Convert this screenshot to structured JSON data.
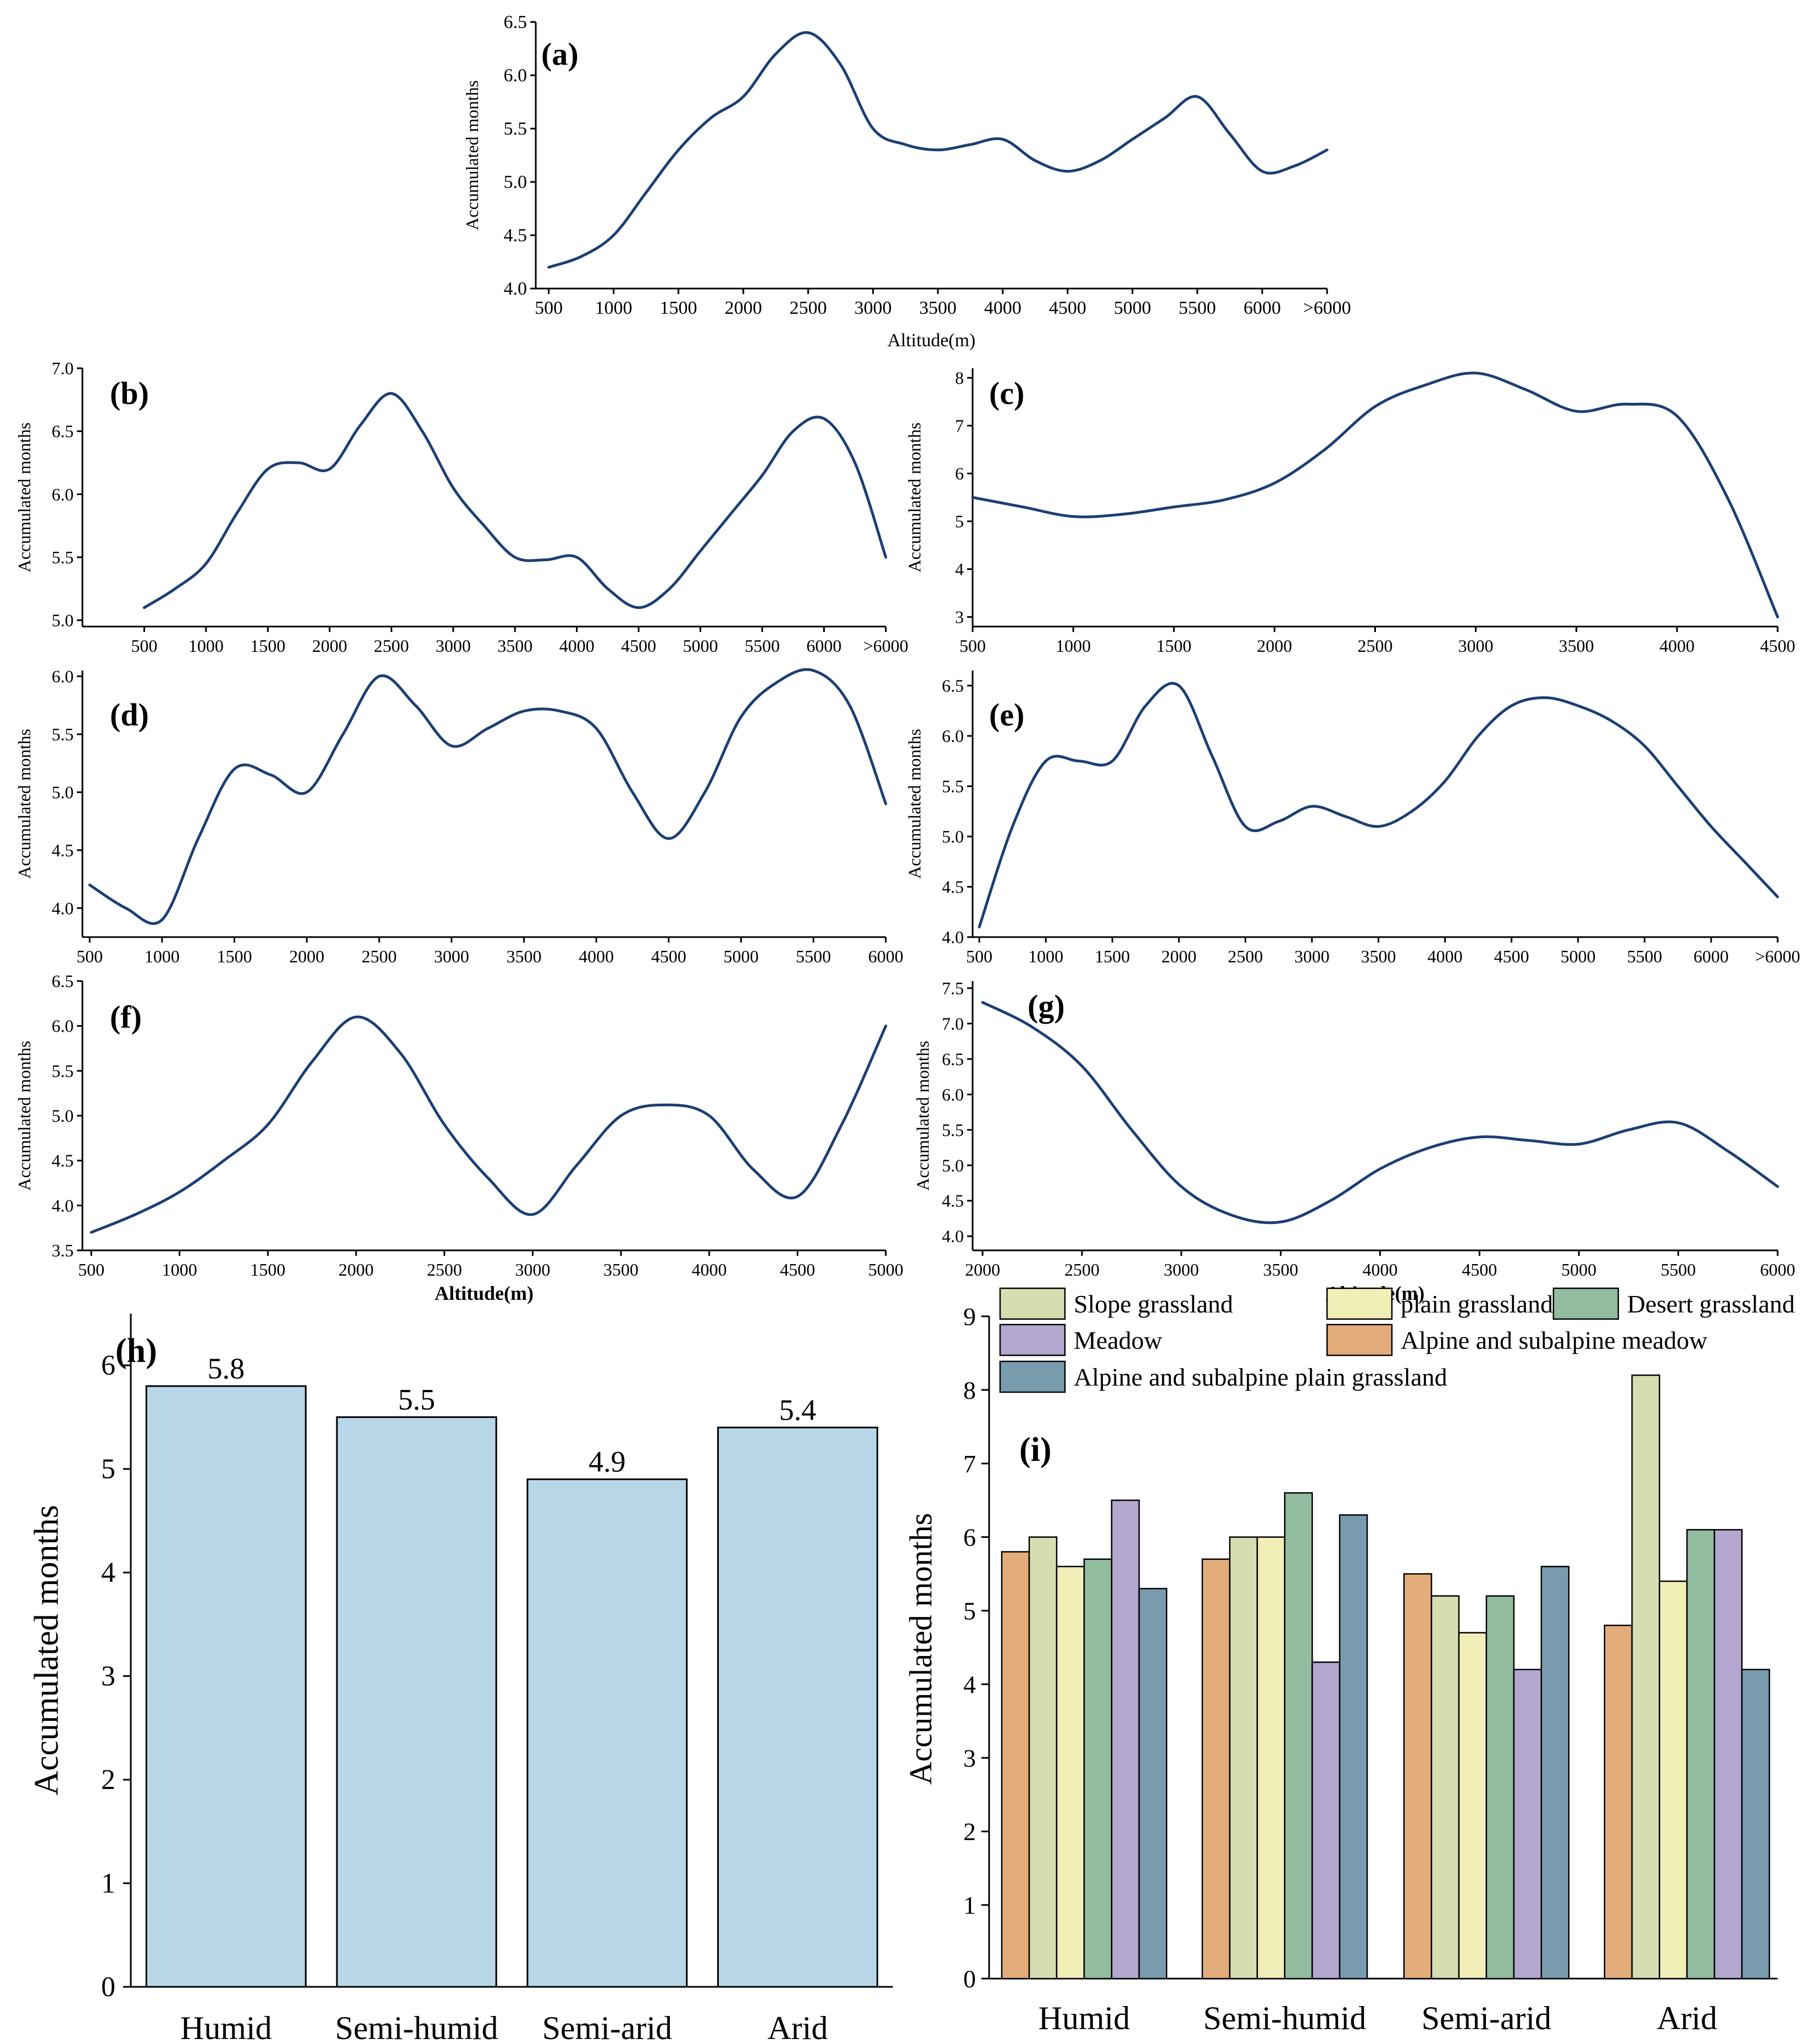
{
  "figure": {
    "panel_labels": [
      "(a)",
      "(b)",
      "(c)",
      "(d)",
      "(e)",
      "(f)",
      "(g)",
      "(h)",
      "(i)"
    ]
  },
  "colors": {
    "line": "#1b3f73",
    "bar_h": "#b7d7e8",
    "alpine_meadow": "#e3ad7b",
    "slope_grassland": "#d5deb0",
    "plain_grassland": "#f2eeb8",
    "desert_grassland": "#92bc9f",
    "meadow": "#b3a6cf",
    "alpine_plain_grassland": "#789cae"
  },
  "chart_data": [
    {
      "id": "a",
      "type": "line",
      "label": "(a)",
      "ylabel": "Accumulated months",
      "xlabel": "Altitude(m)",
      "x": [
        500,
        750,
        1000,
        1250,
        1500,
        1750,
        2000,
        2250,
        2500,
        2750,
        3000,
        3250,
        3500,
        3750,
        4000,
        4250,
        4500,
        4750,
        5000,
        5250,
        5500,
        5750,
        6000,
        6250,
        6500
      ],
      "y": [
        4.2,
        4.3,
        4.5,
        4.9,
        5.3,
        5.6,
        5.8,
        6.2,
        6.4,
        6.1,
        5.5,
        5.35,
        5.3,
        5.35,
        5.4,
        5.2,
        5.1,
        5.2,
        5.4,
        5.6,
        5.8,
        5.45,
        5.1,
        5.15,
        5.3
      ],
      "xlim": [
        400,
        6500
      ],
      "ylim": [
        4.0,
        6.5
      ],
      "xticks": [
        500,
        1000,
        1500,
        2000,
        2500,
        3000,
        3500,
        4000,
        4500,
        5000,
        5500,
        6000,
        6500
      ],
      "xticklabels": [
        "500",
        "1000",
        "1500",
        "2000",
        "2500",
        "3000",
        "3500",
        "4000",
        "4500",
        "5000",
        "5500",
        "6000",
        ">6000"
      ],
      "yticks": [
        "4.0",
        "4.5",
        "5.0",
        "5.5",
        "6.0",
        "6.5"
      ]
    },
    {
      "id": "b",
      "type": "line",
      "label": "(b)",
      "ylabel": "Accumulated months",
      "xlabel": "",
      "x": [
        500,
        750,
        1000,
        1250,
        1500,
        1750,
        2000,
        2250,
        2500,
        2750,
        3000,
        3250,
        3500,
        3750,
        4000,
        4250,
        4500,
        4750,
        5000,
        5250,
        5500,
        5750,
        6000,
        6250,
        6500
      ],
      "y": [
        5.1,
        5.25,
        5.45,
        5.85,
        6.2,
        6.25,
        6.2,
        6.55,
        6.8,
        6.5,
        6.05,
        5.75,
        5.5,
        5.48,
        5.5,
        5.25,
        5.1,
        5.25,
        5.55,
        5.85,
        6.15,
        6.5,
        6.6,
        6.25,
        5.5
      ],
      "xlim": [
        0,
        6500
      ],
      "ylim": [
        4.95,
        7.0
      ],
      "xticks": [
        500,
        1000,
        1500,
        2000,
        2500,
        3000,
        3500,
        4000,
        4500,
        5000,
        5500,
        6000,
        6500
      ],
      "xticklabels": [
        "500",
        "1000",
        "1500",
        "2000",
        "2500",
        "3000",
        "3500",
        "4000",
        "4500",
        "5000",
        "5500",
        "6000",
        ">6000"
      ],
      "yticks": [
        "5.0",
        "5.5",
        "6.0",
        "6.5",
        "7.0"
      ]
    },
    {
      "id": "c",
      "type": "line",
      "label": "(c)",
      "ylabel": "Accumulated months",
      "xlabel": "",
      "x": [
        500,
        750,
        1000,
        1250,
        1500,
        1750,
        2000,
        2250,
        2500,
        2750,
        3000,
        3250,
        3500,
        3750,
        4000,
        4250,
        4500
      ],
      "y": [
        5.5,
        5.3,
        5.1,
        5.15,
        5.3,
        5.45,
        5.8,
        6.5,
        7.4,
        7.85,
        8.1,
        7.75,
        7.3,
        7.45,
        7.2,
        5.5,
        3.0
      ],
      "xlim": [
        500,
        4500
      ],
      "ylim": [
        2.8,
        8.2
      ],
      "xticks": [
        500,
        1000,
        1500,
        2000,
        2500,
        3000,
        3500,
        4000,
        4500
      ],
      "xticklabels": [
        "500",
        "1000",
        "1500",
        "2000",
        "2500",
        "3000",
        "3500",
        "4000",
        "4500"
      ],
      "yticks": [
        "3",
        "4",
        "5",
        "6",
        "7",
        "8"
      ]
    },
    {
      "id": "d",
      "type": "line",
      "label": "(d)",
      "ylabel": "Accumulated months",
      "xlabel": "",
      "x": [
        500,
        750,
        1000,
        1250,
        1500,
        1750,
        2000,
        2250,
        2500,
        2750,
        3000,
        3250,
        3500,
        3750,
        4000,
        4250,
        4500,
        4750,
        5000,
        5250,
        5500,
        5750,
        6000
      ],
      "y": [
        4.2,
        4.0,
        3.9,
        4.6,
        5.2,
        5.15,
        5.0,
        5.5,
        6.0,
        5.75,
        5.4,
        5.55,
        5.7,
        5.7,
        5.55,
        5.0,
        4.6,
        5.0,
        5.65,
        5.95,
        6.05,
        5.75,
        4.9
      ],
      "xlim": [
        450,
        6000
      ],
      "ylim": [
        3.75,
        6.05
      ],
      "xticks": [
        500,
        1000,
        1500,
        2000,
        2500,
        3000,
        3500,
        4000,
        4500,
        5000,
        5500,
        6000
      ],
      "xticklabels": [
        "500",
        "1000",
        "1500",
        "2000",
        "2500",
        "3000",
        "3500",
        "4000",
        "4500",
        "5000",
        "5500",
        "6000"
      ],
      "yticks": [
        "4.0",
        "4.5",
        "5.0",
        "5.5",
        "6.0"
      ]
    },
    {
      "id": "e",
      "type": "line",
      "label": "(e)",
      "ylabel": "Accumulated months",
      "xlabel": "",
      "x": [
        500,
        750,
        1000,
        1250,
        1500,
        1750,
        2000,
        2250,
        2500,
        2750,
        3000,
        3250,
        3500,
        3750,
        4000,
        4250,
        4500,
        4750,
        5000,
        5250,
        5500,
        5750,
        6000,
        6250,
        6500
      ],
      "y": [
        4.1,
        5.1,
        5.75,
        5.75,
        5.75,
        6.3,
        6.5,
        5.8,
        5.1,
        5.15,
        5.3,
        5.2,
        5.1,
        5.25,
        5.55,
        6.0,
        6.3,
        6.38,
        6.3,
        6.15,
        5.9,
        5.5,
        5.1,
        4.75,
        4.4
      ],
      "xlim": [
        450,
        6500
      ],
      "ylim": [
        4.0,
        6.65
      ],
      "xticks": [
        500,
        1000,
        1500,
        2000,
        2500,
        3000,
        3500,
        4000,
        4500,
        5000,
        5500,
        6000,
        6500
      ],
      "xticklabels": [
        "500",
        "1000",
        "1500",
        "2000",
        "2500",
        "3000",
        "3500",
        "4000",
        "4500",
        "5000",
        "5500",
        "6000",
        ">6000"
      ],
      "yticks": [
        "4.0",
        "4.5",
        "5.0",
        "5.5",
        "6.0",
        "6.5"
      ]
    },
    {
      "id": "f",
      "type": "line",
      "label": "(f)",
      "ylabel": "Accumulated months",
      "xlabel": "Altitude(m)",
      "x": [
        500,
        750,
        1000,
        1250,
        1500,
        1750,
        2000,
        2250,
        2500,
        2750,
        3000,
        3250,
        3500,
        3750,
        4000,
        4250,
        4500,
        4750,
        5000
      ],
      "y": [
        3.7,
        3.9,
        4.15,
        4.5,
        4.9,
        5.6,
        6.1,
        5.7,
        4.9,
        4.3,
        3.9,
        4.45,
        5.0,
        5.12,
        5.0,
        4.4,
        4.1,
        4.9,
        6.0
      ],
      "xlim": [
        450,
        5000
      ],
      "ylim": [
        3.5,
        6.5
      ],
      "xticks": [
        500,
        1000,
        1500,
        2000,
        2500,
        3000,
        3500,
        4000,
        4500,
        5000
      ],
      "xticklabels": [
        "500",
        "1000",
        "1500",
        "2000",
        "2500",
        "3000",
        "3500",
        "4000",
        "4500",
        "5000"
      ],
      "yticks": [
        "3.5",
        "4.0",
        "4.5",
        "5.0",
        "5.5",
        "6.0",
        "6.5"
      ]
    },
    {
      "id": "g",
      "type": "line",
      "label": "(g)",
      "ylabel": "Accumulated months",
      "xlabel": "Altitude(m)",
      "x": [
        2000,
        2250,
        2500,
        2750,
        3000,
        3250,
        3500,
        3750,
        4000,
        4250,
        4500,
        4750,
        5000,
        5250,
        5500,
        5750,
        6000
      ],
      "y": [
        7.3,
        6.95,
        6.4,
        5.5,
        4.7,
        4.3,
        4.2,
        4.5,
        4.95,
        5.25,
        5.4,
        5.35,
        5.3,
        5.5,
        5.6,
        5.2,
        4.7
      ],
      "xlim": [
        1950,
        6000
      ],
      "ylim": [
        3.8,
        7.6
      ],
      "xticks": [
        2000,
        2500,
        3000,
        3500,
        4000,
        4500,
        5000,
        5500,
        6000
      ],
      "xticklabels": [
        "2000",
        "2500",
        "3000",
        "3500",
        "4000",
        "4500",
        "5000",
        "5500",
        "6000"
      ],
      "yticks": [
        "4.0",
        "4.5",
        "5.0",
        "5.5",
        "6.0",
        "6.5",
        "7.0",
        "7.5"
      ]
    },
    {
      "id": "h",
      "type": "bar",
      "label": "(h)",
      "ylabel": "Accumulated months",
      "categories": [
        "Humid",
        "Semi-humid",
        "Semi-arid",
        "Arid"
      ],
      "values": [
        5.8,
        5.5,
        4.9,
        5.4
      ],
      "value_labels": [
        "5.8",
        "5.5",
        "4.9",
        "5.4"
      ],
      "ylim": [
        0,
        6.5
      ],
      "yticks": [
        "0",
        "1",
        "2",
        "3",
        "4",
        "5",
        "6"
      ]
    },
    {
      "id": "i",
      "type": "bar",
      "label": "(i)",
      "ylabel": "Accumulated months",
      "categories": [
        "Humid",
        "Semi-humid",
        "Semi-arid",
        "Arid"
      ],
      "legend": [
        "Slope grassland",
        "plain grassland",
        "Desert grassland",
        "Meadow",
        "Alpine and subalpine meadow",
        "Alpine and subalpine plain grassland"
      ],
      "series": [
        {
          "name": "Alpine and subalpine meadow",
          "color_key": "alpine_meadow",
          "values": [
            5.8,
            5.7,
            5.5,
            4.8
          ]
        },
        {
          "name": "Slope grassland",
          "color_key": "slope_grassland",
          "values": [
            6.0,
            6.0,
            5.2,
            8.2
          ]
        },
        {
          "name": "plain grassland",
          "color_key": "plain_grassland",
          "values": [
            5.6,
            6.0,
            4.7,
            5.4
          ]
        },
        {
          "name": "Desert grassland",
          "color_key": "desert_grassland",
          "values": [
            5.7,
            6.6,
            5.2,
            6.1
          ]
        },
        {
          "name": "Meadow",
          "color_key": "meadow",
          "values": [
            6.5,
            4.3,
            4.2,
            6.1
          ]
        },
        {
          "name": "Alpine and subalpine plain grassland",
          "color_key": "alpine_plain_grassland",
          "values": [
            5.3,
            6.3,
            5.6,
            4.2
          ]
        }
      ],
      "ylim": [
        0,
        9
      ],
      "yticks": [
        "0",
        "1",
        "2",
        "3",
        "4",
        "5",
        "6",
        "7",
        "8",
        "9"
      ]
    }
  ]
}
